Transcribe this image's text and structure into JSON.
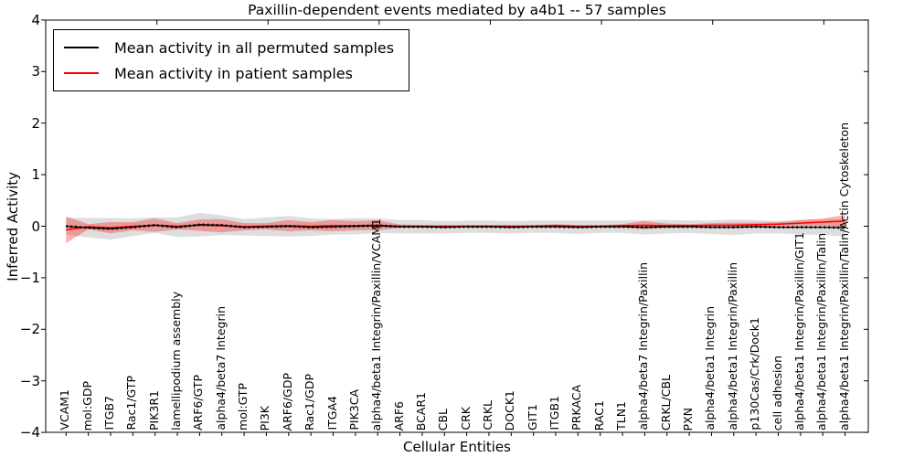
{
  "chart_data": {
    "type": "line",
    "title": "Paxillin-dependent events mediated by a4b1 -- 57 samples",
    "xlabel": "Cellular Entities",
    "ylabel": "Inferred Activity",
    "ylim": [
      -4,
      4
    ],
    "yticks": {
      "values": [
        4,
        3,
        2,
        1,
        0,
        -1,
        -2,
        -3,
        -4
      ],
      "labels": [
        "4",
        "3",
        "2",
        "1",
        "0",
        "−1",
        "−2",
        "−3",
        "−4"
      ]
    },
    "grid": false,
    "legend_position": "upper left",
    "categories": [
      "VCAM1",
      "mol:GDP",
      "ITGB7",
      "Rac1/GTP",
      "PIK3R1",
      "lamellipodium assembly",
      "ARF6/GTP",
      "alpha4/beta7 Integrin",
      "mol:GTP",
      "PI3K",
      "ARF6/GDP",
      "Rac1/GDP",
      "ITGA4",
      "PIK3CA",
      "alpha4/beta1 Integrin/Paxillin/VCAM1",
      "ARF6",
      "BCAR1",
      "CBL",
      "CRK",
      "CRKL",
      "DOCK1",
      "GIT1",
      "ITGB1",
      "PRKACA",
      "RAC1",
      "TLN1",
      "alpha4/beta7 Integrin/Paxillin",
      "CRKL/CBL",
      "PXN",
      "alpha4/beta1 Integrin",
      "alpha4/beta1 Integrin/Paxillin",
      "p130Cas/Crk/Dock1",
      "cell adhesion",
      "alpha4/beta1 Integrin/Paxillin/GIT1",
      "alpha4/beta1 Integrin/Paxillin/Talin",
      "alpha4/beta1 Integrin/Paxillin/Talin/Actin Cytoskeleton"
    ],
    "series": [
      {
        "name": "Mean activity in all permuted samples",
        "color": "#000000",
        "line_style": "solid with dotted marker overlay",
        "values": [
          0.0,
          -0.03,
          -0.05,
          -0.02,
          0.02,
          -0.02,
          0.03,
          0.02,
          -0.02,
          -0.01,
          0.0,
          -0.02,
          -0.01,
          0.0,
          0.01,
          -0.01,
          -0.01,
          -0.02,
          -0.01,
          -0.01,
          -0.02,
          -0.01,
          -0.01,
          -0.02,
          -0.01,
          -0.01,
          -0.02,
          -0.01,
          -0.01,
          -0.02,
          -0.02,
          -0.01,
          -0.02,
          -0.02,
          -0.02,
          -0.03
        ],
        "band": [
          0.16,
          0.19,
          0.21,
          0.17,
          0.15,
          0.19,
          0.23,
          0.19,
          0.16,
          0.18,
          0.2,
          0.17,
          0.15,
          0.16,
          0.14,
          0.13,
          0.13,
          0.12,
          0.12,
          0.12,
          0.12,
          0.12,
          0.12,
          0.13,
          0.12,
          0.12,
          0.14,
          0.13,
          0.12,
          0.13,
          0.15,
          0.13,
          0.12,
          0.14,
          0.15,
          0.17
        ]
      },
      {
        "name": "Mean activity in patient samples",
        "color": "#ff0000",
        "line_style": "solid",
        "values": [
          -0.07,
          -0.01,
          -0.03,
          0.0,
          0.02,
          0.0,
          0.02,
          0.01,
          -0.01,
          0.0,
          0.01,
          0.0,
          0.01,
          0.01,
          0.02,
          0.0,
          0.0,
          0.0,
          0.0,
          0.0,
          0.0,
          0.0,
          0.01,
          0.0,
          0.0,
          0.01,
          0.02,
          0.01,
          0.01,
          0.02,
          0.02,
          0.03,
          0.04,
          0.06,
          0.08,
          0.1
        ],
        "band": [
          0.26,
          0.05,
          0.11,
          0.08,
          0.13,
          0.06,
          0.11,
          0.13,
          0.07,
          0.06,
          0.11,
          0.08,
          0.11,
          0.09,
          0.1,
          0.03,
          0.02,
          0.02,
          0.02,
          0.02,
          0.02,
          0.02,
          0.03,
          0.02,
          0.02,
          0.03,
          0.08,
          0.04,
          0.03,
          0.04,
          0.05,
          0.04,
          0.04,
          0.06,
          0.07,
          0.12
        ]
      }
    ]
  }
}
